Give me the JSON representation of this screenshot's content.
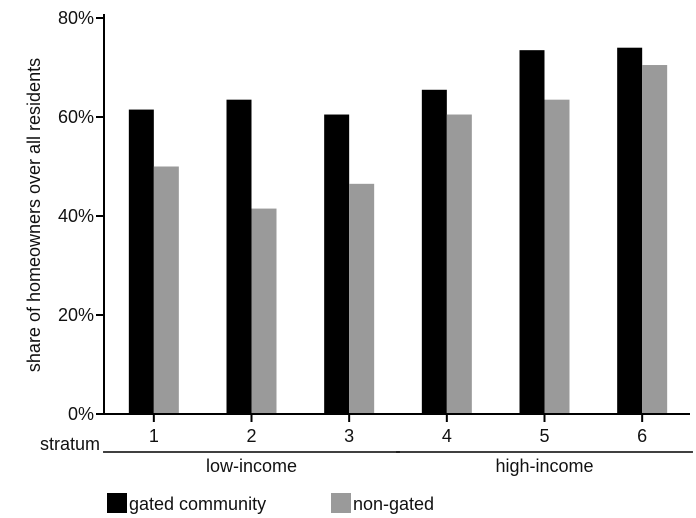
{
  "chart_data": {
    "type": "bar",
    "title": "",
    "xlabel": "stratum",
    "ylabel": "share of homeowners over all residents",
    "categories": [
      "1",
      "2",
      "3",
      "4",
      "5",
      "6"
    ],
    "series": [
      {
        "name": "gated community",
        "color": "#000000",
        "values": [
          61.5,
          63.5,
          60.5,
          65.5,
          73.5,
          74.0
        ]
      },
      {
        "name": "non-gated",
        "color": "#9a9a9a",
        "values": [
          50.0,
          41.5,
          46.5,
          60.5,
          63.5,
          70.5
        ]
      }
    ],
    "ylim": [
      0,
      80
    ],
    "yticks": [
      0,
      20,
      40,
      60,
      80
    ],
    "ytick_suffix": "%",
    "groups": [
      {
        "label": "low-income",
        "categories": [
          "1",
          "2",
          "3"
        ]
      },
      {
        "label": "high-income",
        "categories": [
          "4",
          "5",
          "6"
        ]
      }
    ],
    "legend_position": "bottom-left",
    "grid": false
  }
}
